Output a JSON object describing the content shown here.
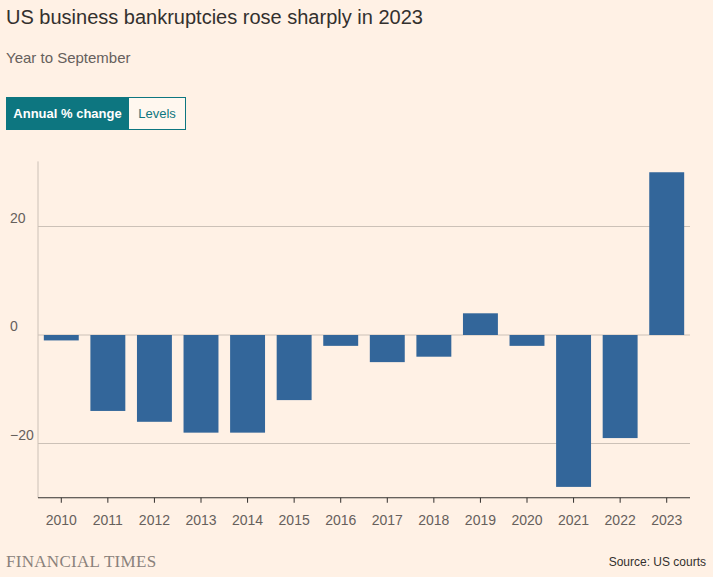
{
  "chart_data": {
    "type": "bar",
    "title": "US business bankruptcies rose sharply in 2023",
    "subtitle": "Year to September",
    "buttons": [
      "Annual % change",
      "Levels"
    ],
    "categories": [
      "2010",
      "2011",
      "2012",
      "2013",
      "2014",
      "2015",
      "2016",
      "2017",
      "2018",
      "2019",
      "2020",
      "2021",
      "2022",
      "2023"
    ],
    "values": [
      -1,
      -14,
      -16,
      -18,
      -18,
      -12,
      -2,
      -5,
      -4,
      4,
      -2,
      -28,
      -19,
      30
    ],
    "color": "#33669a",
    "ylim": [
      -30,
      32
    ],
    "yticks": [
      20,
      0,
      {
        "value": -20,
        "label": "−20"
      }
    ],
    "grid": true,
    "source": "Source: US courts",
    "publisher": "FINANCIAL TIMES"
  }
}
